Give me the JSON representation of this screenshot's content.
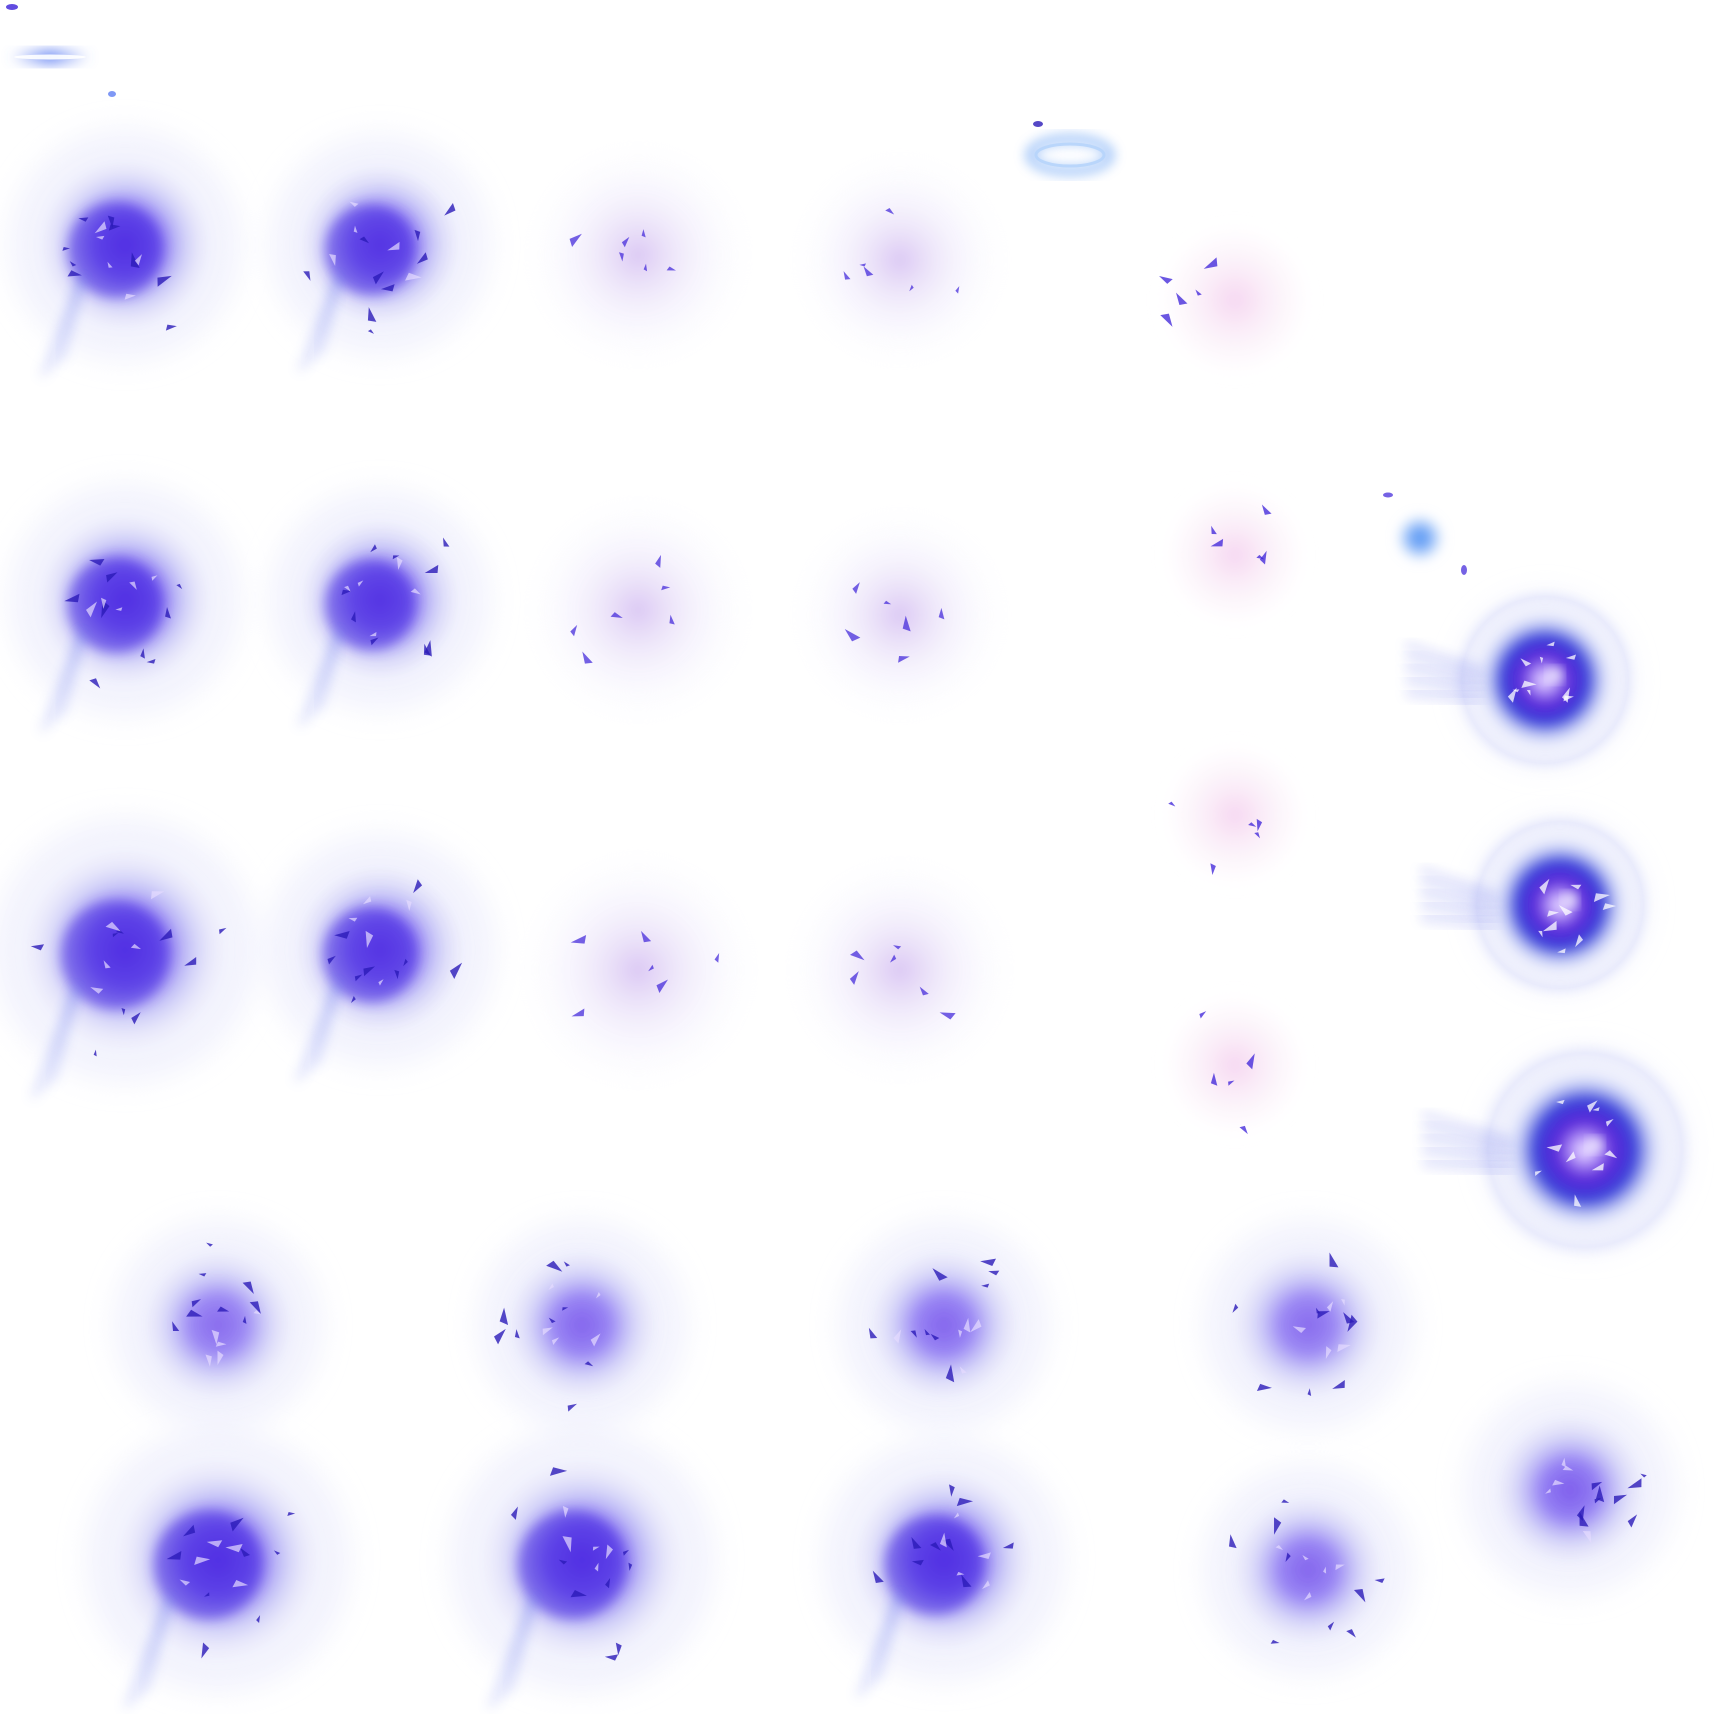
{
  "sheet": {
    "background": "#ffffff",
    "palette": {
      "core": "#3a1fd8",
      "mid": "#6a4cf0",
      "glow": "#b9b4f7",
      "pale": "#e7d9f5",
      "pink": "#f3d6ee",
      "flare": "#3f86f2",
      "shard": "#2a1ab8"
    }
  },
  "sprites": [
    {
      "kind": "flare-streak",
      "intensity": 0.6
    },
    {
      "kind": "ring-flash",
      "intensity": 0.5
    },
    {
      "kind": "blue-orb",
      "intensity": 0.8
    },
    {
      "kind": "burst",
      "intensity": 0.95
    },
    {
      "kind": "burst",
      "intensity": 0.85
    },
    {
      "kind": "burst",
      "intensity": 0.3
    },
    {
      "kind": "burst",
      "intensity": 0.2
    },
    {
      "kind": "burst",
      "intensity": 0.1
    },
    {
      "kind": "burst",
      "intensity": 0.95
    },
    {
      "kind": "burst",
      "intensity": 0.85
    },
    {
      "kind": "burst",
      "intensity": 0.35
    },
    {
      "kind": "burst",
      "intensity": 0.25
    },
    {
      "kind": "burst",
      "intensity": 0.1
    },
    {
      "kind": "burst",
      "intensity": 0.1
    },
    {
      "kind": "impact-core",
      "intensity": 1.0
    },
    {
      "kind": "impact-core",
      "intensity": 1.0
    },
    {
      "kind": "burst",
      "intensity": 1.0
    },
    {
      "kind": "burst",
      "intensity": 0.85
    },
    {
      "kind": "burst",
      "intensity": 0.4
    },
    {
      "kind": "burst",
      "intensity": 0.3
    },
    {
      "kind": "burst",
      "intensity": 0.1
    },
    {
      "kind": "impact-core",
      "intensity": 1.0
    },
    {
      "kind": "burst",
      "intensity": 0.5
    },
    {
      "kind": "burst",
      "intensity": 0.55
    },
    {
      "kind": "burst",
      "intensity": 0.55
    },
    {
      "kind": "burst",
      "intensity": 0.5
    },
    {
      "kind": "burst",
      "intensity": 1.0
    },
    {
      "kind": "burst",
      "intensity": 1.0
    },
    {
      "kind": "burst",
      "intensity": 0.95
    },
    {
      "kind": "burst",
      "intensity": 0.55
    },
    {
      "kind": "burst",
      "intensity": 0.6
    }
  ]
}
